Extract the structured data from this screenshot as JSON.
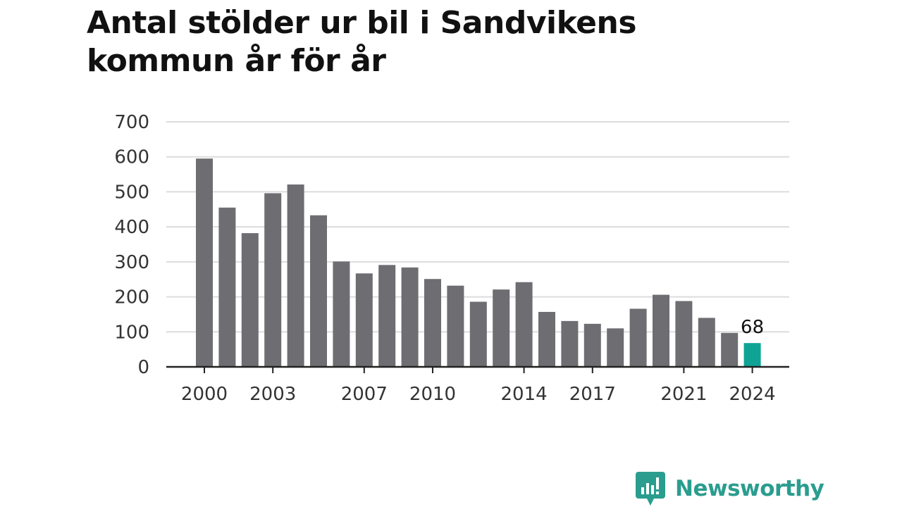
{
  "title_lines": [
    "Antal stölder ur bil i Sandvikens",
    "kommun år för år"
  ],
  "brand": {
    "name": "Newsworthy",
    "icon": "newsworthy-logo-icon",
    "color": "#2a9d8f"
  },
  "colors": {
    "bar": "#6e6d72",
    "highlight": "#0fa396",
    "grid": "#dcdcdc",
    "axis": "#222222"
  },
  "chart_data": {
    "type": "bar",
    "title": "Antal stölder ur bil i Sandvikens kommun år för år",
    "categories": [
      2000,
      2001,
      2002,
      2003,
      2004,
      2005,
      2006,
      2007,
      2008,
      2009,
      2010,
      2011,
      2012,
      2013,
      2014,
      2015,
      2016,
      2017,
      2018,
      2019,
      2020,
      2021,
      2022,
      2023,
      2024
    ],
    "values": [
      595,
      455,
      382,
      496,
      521,
      433,
      301,
      267,
      291,
      284,
      251,
      232,
      186,
      221,
      242,
      157,
      131,
      123,
      110,
      166,
      206,
      188,
      140,
      97,
      68
    ],
    "x_tick_labels": [
      "2000",
      "2003",
      "2007",
      "2010",
      "2014",
      "2017",
      "2021",
      "2024"
    ],
    "y_ticks": [
      0,
      100,
      200,
      300,
      400,
      500,
      600,
      700
    ],
    "ylim": [
      0,
      700
    ],
    "grid": true,
    "highlight": {
      "category": 2024,
      "label": "68"
    },
    "xlabel": "",
    "ylabel": ""
  }
}
